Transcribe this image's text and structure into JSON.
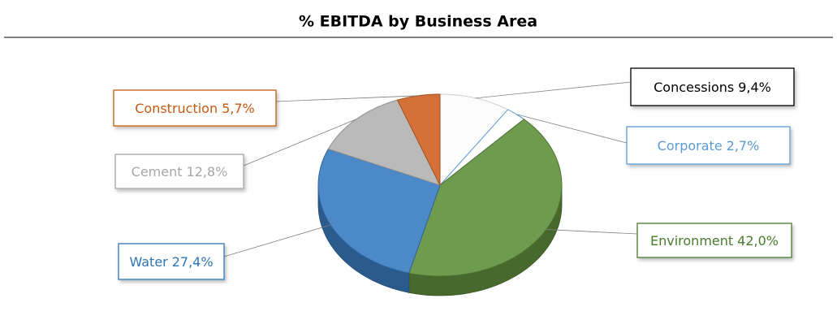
{
  "chart_data": {
    "type": "pie",
    "title": "% EBITDA by Business Area",
    "categories": [
      "Concessions",
      "Corporate",
      "Environment",
      "Water",
      "Cement",
      "Construction"
    ],
    "values": [
      9.4,
      2.7,
      42.0,
      27.4,
      12.8,
      5.7
    ],
    "value_labels": [
      "9,4%",
      "2,7%",
      "42,0%",
      "27,4%",
      "12,8%",
      "5,7%"
    ],
    "colors": [
      "#fbfbfb",
      "#ffffff",
      "#62923f",
      "#3c7fc3",
      "#b4b4b4",
      "#cf6527"
    ]
  }
}
